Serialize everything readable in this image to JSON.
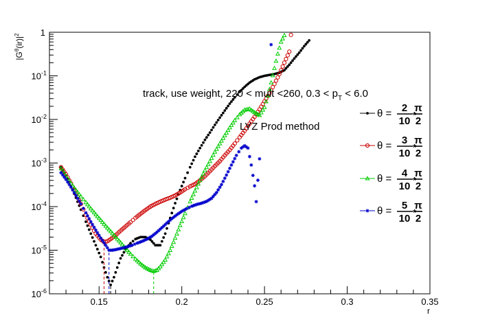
{
  "chart_data": {
    "type": "scatter",
    "title": "",
    "xlabel": "r",
    "ylabel": "|Gθ(ir)|2",
    "xlim": [
      0.12,
      0.35
    ],
    "ylim": [
      1e-06,
      1
    ],
    "yscale": "log",
    "grid": false,
    "legend_position": "right",
    "x_ticks": [
      "0.15",
      "0.2",
      "0.25",
      "0.3",
      "0.35"
    ],
    "y_ticks": [
      "10-6",
      "10-5",
      "10-4",
      "10-3",
      "10-2",
      "10-1",
      "1"
    ],
    "annotations": {
      "header": "track, use weight, 220 < mult <260, 0.3 < pT < 6.0",
      "method": "LYZ Prod method"
    },
    "legend": [
      {
        "prefix": "θ = ",
        "num": "2",
        "den": "10",
        "mult": "*",
        "pi": "π",
        "pi_den": "2"
      },
      {
        "prefix": "θ = ",
        "num": "3",
        "den": "10",
        "mult": "*",
        "pi": "π",
        "pi_den": "2"
      },
      {
        "prefix": "θ = ",
        "num": "4",
        "den": "10",
        "mult": "*",
        "pi": "π",
        "pi_den": "2"
      },
      {
        "prefix": "θ = ",
        "num": "5",
        "den": "10",
        "mult": "*",
        "pi": "π",
        "pi_den": "2"
      }
    ],
    "series": [
      {
        "color": "#000000",
        "marker": "dot",
        "minimum_x": 0.157,
        "points": [
          [
            0.127,
            0.0008
          ],
          [
            0.13,
            0.00052
          ],
          [
            0.133,
            0.0003
          ],
          [
            0.136,
            0.00016
          ],
          [
            0.139,
            8.5e-05
          ],
          [
            0.142,
            4.5e-05
          ],
          [
            0.145,
            2.4e-05
          ],
          [
            0.148,
            1.3e-05
          ],
          [
            0.151,
            7e-06
          ],
          [
            0.153,
            4e-06
          ],
          [
            0.155,
            2.4e-06
          ],
          [
            0.157,
            1.6e-06
          ],
          [
            0.159,
            2.4e-06
          ],
          [
            0.161,
            4e-06
          ],
          [
            0.163,
            6.5e-06
          ],
          [
            0.166,
            1.05e-05
          ],
          [
            0.169,
            1.45e-05
          ],
          [
            0.172,
            1.8e-05
          ],
          [
            0.175,
            2e-05
          ],
          [
            0.178,
            2e-05
          ],
          [
            0.181,
            1.75e-05
          ],
          [
            0.184,
            1.3e-05
          ],
          [
            0.187,
            1.3e-05
          ],
          [
            0.19,
            2.4e-05
          ],
          [
            0.193,
            5.5e-05
          ],
          [
            0.196,
            0.00012
          ],
          [
            0.199,
            0.00024
          ],
          [
            0.202,
            0.00045
          ],
          [
            0.205,
            0.0008
          ],
          [
            0.208,
            0.0014
          ],
          [
            0.211,
            0.0022
          ],
          [
            0.214,
            0.0034
          ],
          [
            0.217,
            0.005
          ],
          [
            0.22,
            0.0075
          ],
          [
            0.223,
            0.011
          ],
          [
            0.226,
            0.016
          ],
          [
            0.229,
            0.023
          ],
          [
            0.232,
            0.032
          ],
          [
            0.235,
            0.043
          ],
          [
            0.238,
            0.056
          ],
          [
            0.241,
            0.07
          ],
          [
            0.244,
            0.083
          ],
          [
            0.247,
            0.093
          ],
          [
            0.25,
            0.1
          ],
          [
            0.253,
            0.105
          ],
          [
            0.256,
            0.11
          ],
          [
            0.259,
            0.118
          ],
          [
            0.262,
            0.135
          ],
          [
            0.265,
            0.18
          ],
          [
            0.268,
            0.25
          ],
          [
            0.271,
            0.34
          ],
          [
            0.274,
            0.48
          ],
          [
            0.277,
            0.65
          ]
        ]
      },
      {
        "color": "#cc0000",
        "marker": "open-circle",
        "minimum_x": 0.153,
        "points": [
          [
            0.127,
            0.0008
          ],
          [
            0.13,
            0.00055
          ],
          [
            0.133,
            0.00034
          ],
          [
            0.136,
            0.0002
          ],
          [
            0.139,
            0.000115
          ],
          [
            0.142,
            6.5e-05
          ],
          [
            0.145,
            3.8e-05
          ],
          [
            0.148,
            2.4e-05
          ],
          [
            0.151,
            1.75e-05
          ],
          [
            0.153,
            1.55e-05
          ],
          [
            0.155,
            1.6e-05
          ],
          [
            0.157,
            1.8e-05
          ],
          [
            0.16,
            2.2e-05
          ],
          [
            0.163,
            2.8e-05
          ],
          [
            0.166,
            3.5e-05
          ],
          [
            0.169,
            4.4e-05
          ],
          [
            0.172,
            5.5e-05
          ],
          [
            0.175,
            6.8e-05
          ],
          [
            0.178,
            8.3e-05
          ],
          [
            0.181,
            0.0001
          ],
          [
            0.184,
            0.000115
          ],
          [
            0.187,
            0.00013
          ],
          [
            0.19,
            0.000145
          ],
          [
            0.193,
            0.00016
          ],
          [
            0.196,
            0.00018
          ],
          [
            0.199,
            0.00021
          ],
          [
            0.202,
            0.00025
          ],
          [
            0.205,
            0.00029
          ],
          [
            0.208,
            0.00033
          ],
          [
            0.211,
            0.0004
          ],
          [
            0.214,
            0.0005
          ],
          [
            0.217,
            0.00065
          ],
          [
            0.22,
            0.00085
          ],
          [
            0.223,
            0.0011
          ],
          [
            0.226,
            0.0015
          ],
          [
            0.229,
            0.002
          ],
          [
            0.232,
            0.0028
          ],
          [
            0.235,
            0.0039
          ],
          [
            0.238,
            0.0055
          ],
          [
            0.241,
            0.008
          ],
          [
            0.244,
            0.0115
          ],
          [
            0.247,
            0.017
          ],
          [
            0.25,
            0.026
          ],
          [
            0.253,
            0.04
          ],
          [
            0.256,
            0.065
          ],
          [
            0.259,
            0.11
          ],
          [
            0.262,
            0.2
          ],
          [
            0.265,
            0.36
          ],
          [
            0.266,
            0.87
          ]
        ]
      },
      {
        "color": "#00cc00",
        "marker": "open-triangle",
        "minimum_x": 0.183,
        "points": [
          [
            0.127,
            0.00075
          ],
          [
            0.13,
            0.0005
          ],
          [
            0.133,
            0.00034
          ],
          [
            0.136,
            0.00024
          ],
          [
            0.139,
            0.00017
          ],
          [
            0.142,
            0.000125
          ],
          [
            0.145,
            9e-05
          ],
          [
            0.148,
            6.6e-05
          ],
          [
            0.151,
            4.9e-05
          ],
          [
            0.154,
            3.6e-05
          ],
          [
            0.157,
            2.7e-05
          ],
          [
            0.16,
            2e-05
          ],
          [
            0.163,
            1.5e-05
          ],
          [
            0.166,
            1.1e-05
          ],
          [
            0.169,
            8.2e-06
          ],
          [
            0.172,
            6.3e-06
          ],
          [
            0.175,
            4.9e-06
          ],
          [
            0.178,
            4e-06
          ],
          [
            0.181,
            3.5e-06
          ],
          [
            0.183,
            3.3e-06
          ],
          [
            0.185,
            3.5e-06
          ],
          [
            0.187,
            4.2e-06
          ],
          [
            0.19,
            6e-06
          ],
          [
            0.193,
            1e-05
          ],
          [
            0.196,
            1.9e-05
          ],
          [
            0.199,
            3.7e-05
          ],
          [
            0.202,
            7e-05
          ],
          [
            0.205,
            0.00013
          ],
          [
            0.208,
            0.00023
          ],
          [
            0.211,
            0.0004
          ],
          [
            0.214,
            0.00068
          ],
          [
            0.217,
            0.0011
          ],
          [
            0.22,
            0.0018
          ],
          [
            0.223,
            0.0028
          ],
          [
            0.226,
            0.0043
          ],
          [
            0.229,
            0.0065
          ],
          [
            0.232,
            0.0095
          ],
          [
            0.235,
            0.013
          ],
          [
            0.238,
            0.0165
          ],
          [
            0.241,
            0.0175
          ],
          [
            0.244,
            0.0145
          ],
          [
            0.247,
            0.0125
          ],
          [
            0.25,
            0.019
          ],
          [
            0.252,
            0.035
          ],
          [
            0.254,
            0.07
          ],
          [
            0.256,
            0.15
          ],
          [
            0.258,
            0.32
          ],
          [
            0.26,
            0.6
          ],
          [
            0.262,
            0.85
          ]
        ]
      },
      {
        "color": "#0000cc",
        "marker": "star",
        "minimum_x": 0.156,
        "points": [
          [
            0.127,
            0.0006
          ],
          [
            0.13,
            0.00042
          ],
          [
            0.133,
            0.00028
          ],
          [
            0.136,
            0.00018
          ],
          [
            0.139,
            0.000115
          ],
          [
            0.142,
            7.2e-05
          ],
          [
            0.145,
            4.5e-05
          ],
          [
            0.148,
            2.9e-05
          ],
          [
            0.151,
            1.9e-05
          ],
          [
            0.154,
            1.3e-05
          ],
          [
            0.156,
            1e-05
          ],
          [
            0.158,
            1e-05
          ],
          [
            0.161,
            1.05e-05
          ],
          [
            0.164,
            1.12e-05
          ],
          [
            0.167,
            1.2e-05
          ],
          [
            0.17,
            1.3e-05
          ],
          [
            0.173,
            1.45e-05
          ],
          [
            0.176,
            1.6e-05
          ],
          [
            0.179,
            1.8e-05
          ],
          [
            0.182,
            2.1e-05
          ],
          [
            0.185,
            2.6e-05
          ],
          [
            0.188,
            3.3e-05
          ],
          [
            0.191,
            4.2e-05
          ],
          [
            0.194,
            5.3e-05
          ],
          [
            0.197,
            6.5e-05
          ],
          [
            0.2,
            7.8e-05
          ],
          [
            0.203,
            9e-05
          ],
          [
            0.206,
            0.000102
          ],
          [
            0.209,
            0.000112
          ],
          [
            0.212,
            0.00012
          ],
          [
            0.215,
            0.000132
          ],
          [
            0.218,
            0.000155
          ],
          [
            0.221,
            0.00021
          ],
          [
            0.224,
            0.00032
          ],
          [
            0.227,
            0.00053
          ],
          [
            0.23,
            0.0009
          ],
          [
            0.233,
            0.0015
          ],
          [
            0.236,
            0.0022
          ],
          [
            0.238,
            0.0025
          ],
          [
            0.24,
            0.0022
          ],
          [
            0.242,
            0.0009
          ],
          [
            0.244,
            0.0003
          ],
          [
            0.245,
            0.00013
          ],
          [
            0.247,
            0.00125
          ],
          [
            0.254,
            0.52
          ]
        ]
      }
    ]
  }
}
